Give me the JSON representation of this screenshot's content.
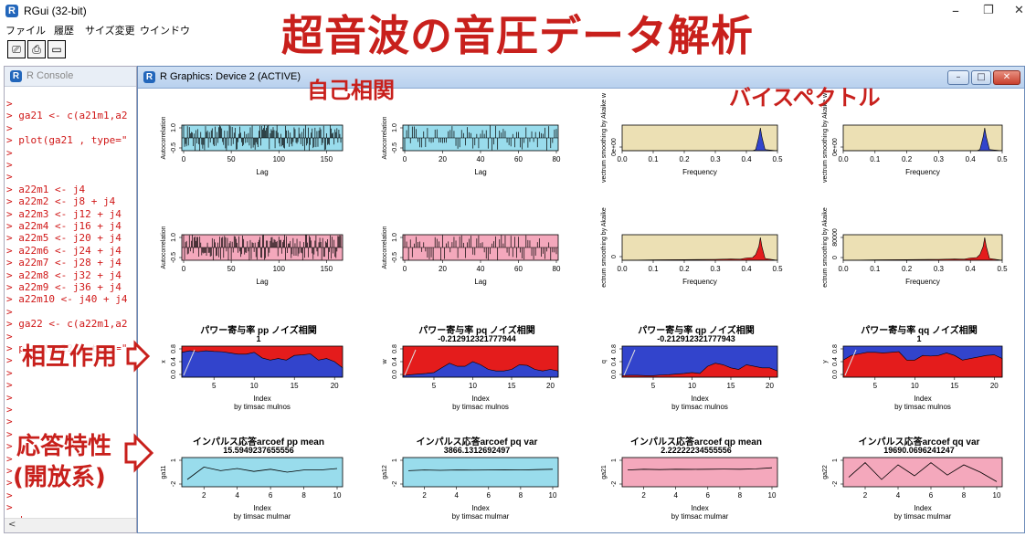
{
  "app": {
    "title": "RGui (32-bit)",
    "logo": "R",
    "min": "–",
    "restore": "❐",
    "close": "✕"
  },
  "menu": [
    "ファイル",
    "履歴",
    "サイズ変更",
    "ウインドウ"
  ],
  "toolbar": [
    "⎚",
    "⎙",
    "▭"
  ],
  "console": {
    "title": "R Console",
    "lines": [
      ">",
      "> ga21 <- c(a21m1,a2",
      ">",
      "> plot(ga21 , type=\"",
      ">",
      ">",
      ">",
      "> a22m1 <-  j4",
      "> a22m2 <-  j8 + j4",
      "> a22m3 <-  j12 + j4",
      "> a22m4 <- j16 + j4",
      "> a22m5 <- j20 + j4",
      "> a22m6 <- j24 + j4",
      "> a22m7 <- j28 + j4",
      "> a22m8 <- j32 + j4",
      "> a22m9 <- j36 + j4",
      "> a22m10 <- j40 + j4",
      ">",
      "> ga22 <- c(a22m1,a2",
      ">",
      "> plot(ga22 , type=\"",
      ">",
      ">",
      ">",
      ">",
      ">",
      ">",
      ">",
      ">",
      ">",
      ">",
      ">",
      ">",
      ">",
      "> |"
    ],
    "scroll_left": "<"
  },
  "graphics": {
    "title": "R Graphics: Device 2 (ACTIVE)",
    "btn_min": "–",
    "btn_max": "□",
    "btn_close": "✕"
  },
  "annotations": {
    "main_title": "超音波の音圧データ解析",
    "autocorr": "自己相関",
    "bispectrum": "バイスペクトル",
    "interaction": "相互作用",
    "response1": "応答特性",
    "response2": "(開放系)"
  },
  "colors": {
    "red_text": "#c8201c",
    "console_text": "#d01818",
    "cyan_fill": "#99dcec",
    "pink_fill": "#f4a8bc",
    "tan_fill": "#ece0b4",
    "blue_fill": "#3244cc",
    "red_fill": "#e41c1c"
  },
  "chart_data": [
    {
      "type": "bar",
      "id": "acf1",
      "ylabel": "Autocorrelation",
      "xlabel": "Lag",
      "xticks": [
        "0",
        "50",
        "100",
        "150"
      ],
      "yticks": [
        "-0.5",
        "1.0"
      ],
      "xlim": [
        0,
        165
      ],
      "bg": "cyan"
    },
    {
      "type": "bar",
      "id": "acf2",
      "ylabel": "Autocorrelation",
      "xlabel": "Lag",
      "xticks": [
        "0",
        "20",
        "40",
        "60",
        "80"
      ],
      "yticks": [
        "-0.5",
        "1.0"
      ],
      "xlim": [
        0,
        80
      ],
      "bg": "cyan"
    },
    {
      "type": "area",
      "id": "bisp1",
      "ylabel": "vectrum smoothing by  Akaike w",
      "xlabel": "Frequency",
      "xticks": [
        "0.0",
        "0.1",
        "0.2",
        "0.3",
        "0.4",
        "0.5"
      ],
      "yticks": [
        "0e+00"
      ],
      "xlim": [
        0,
        0.5
      ],
      "bg": "tan",
      "x": [
        0.0,
        0.42,
        0.43,
        0.44,
        0.445,
        0.45,
        0.46,
        0.5
      ],
      "y": [
        0.0,
        0.0,
        0.05,
        0.6,
        1.0,
        0.6,
        0.05,
        0.0
      ]
    },
    {
      "type": "area",
      "id": "bisp2",
      "ylabel": "vectrum smoothing by  Akaike w",
      "xlabel": "Frequency",
      "xticks": [
        "0.0",
        "0.1",
        "0.2",
        "0.3",
        "0.4",
        "0.5"
      ],
      "yticks": [
        "0e+00"
      ],
      "xlim": [
        0,
        0.5
      ],
      "bg": "tan",
      "x": [
        0.0,
        0.42,
        0.43,
        0.44,
        0.445,
        0.45,
        0.46,
        0.5
      ],
      "y": [
        0.0,
        0.0,
        0.05,
        0.6,
        1.0,
        0.6,
        0.05,
        0.0
      ]
    },
    {
      "type": "bar",
      "id": "acf3",
      "ylabel": "Autocorrelation",
      "xlabel": "Lag",
      "xticks": [
        "0",
        "50",
        "100",
        "150"
      ],
      "yticks": [
        "-0.5",
        "1.0"
      ],
      "xlim": [
        0,
        165
      ],
      "bg": "pink"
    },
    {
      "type": "bar",
      "id": "acf4",
      "ylabel": "Autocorrelation",
      "xlabel": "Lag",
      "xticks": [
        "0",
        "20",
        "40",
        "60",
        "80"
      ],
      "yticks": [
        "-0.5",
        "1.0"
      ],
      "xlim": [
        0,
        80
      ],
      "bg": "pink"
    },
    {
      "type": "area",
      "id": "bisp3",
      "ylabel": "ectrum smoothing by  Akaike",
      "xlabel": "Frequency",
      "xticks": [
        "0.0",
        "0.1",
        "0.2",
        "0.3",
        "0.4",
        "0.5"
      ],
      "yticks": [
        "0"
      ],
      "xlim": [
        0,
        0.5
      ],
      "bg": "tan",
      "x": [
        0.0,
        0.05,
        0.1,
        0.2,
        0.3,
        0.35,
        0.38,
        0.4,
        0.42,
        0.43,
        0.44,
        0.445,
        0.45,
        0.46,
        0.5
      ],
      "y": [
        0.0,
        0.01,
        0.02,
        0.03,
        0.04,
        0.06,
        0.05,
        0.1,
        0.12,
        0.25,
        0.6,
        1.0,
        0.6,
        0.08,
        0.0
      ]
    },
    {
      "type": "area",
      "id": "bisp4",
      "ylabel": "ectrum smoothing by  Akaike",
      "xlabel": "Frequency",
      "xticks": [
        "0.0",
        "0.1",
        "0.2",
        "0.3",
        "0.4",
        "0.5"
      ],
      "yticks": [
        "0",
        "80000"
      ],
      "xlim": [
        0,
        0.5
      ],
      "bg": "tan",
      "x": [
        0.0,
        0.05,
        0.1,
        0.2,
        0.3,
        0.35,
        0.38,
        0.4,
        0.42,
        0.43,
        0.44,
        0.445,
        0.45,
        0.46,
        0.5
      ],
      "y": [
        0.0,
        0.01,
        0.02,
        0.03,
        0.04,
        0.06,
        0.05,
        0.1,
        0.12,
        0.25,
        0.6,
        1.0,
        0.6,
        0.08,
        0.0
      ]
    },
    {
      "type": "area",
      "id": "pw1",
      "title": "パワー寄与率 pp    ノイズ相関",
      "subtitle": "1",
      "ylabel": "x",
      "xlabel": "Index",
      "sublabel": "by timsac mulnos",
      "xticks": [
        "5",
        "10",
        "15",
        "20"
      ],
      "yticks": [
        "0.0",
        "0.4",
        "0.8"
      ],
      "xlim": [
        1,
        21
      ],
      "ylim": [
        0,
        1
      ],
      "x": [
        1,
        2,
        3,
        4,
        5,
        6,
        7,
        8,
        9,
        10,
        11,
        12,
        13,
        14,
        15,
        16,
        17,
        18,
        19,
        20,
        21
      ],
      "y": [
        0.8,
        0.85,
        0.82,
        0.85,
        0.83,
        0.82,
        0.78,
        0.74,
        0.74,
        0.8,
        0.62,
        0.55,
        0.6,
        0.55,
        0.7,
        0.72,
        0.75,
        0.55,
        0.6,
        0.5,
        0.3
      ]
    },
    {
      "type": "area",
      "id": "pw2",
      "title": "パワー寄与率 pq    ノイズ相関",
      "subtitle": "-0.212912321777944",
      "ylabel": "w",
      "xlabel": "Index",
      "sublabel": "by timsac mulnos",
      "xticks": [
        "5",
        "10",
        "15",
        "20"
      ],
      "yticks": [
        "0.0",
        "0.4",
        "0.8"
      ],
      "xlim": [
        1,
        21
      ],
      "ylim": [
        0,
        1
      ],
      "x": [
        1,
        2,
        3,
        4,
        5,
        6,
        7,
        8,
        9,
        10,
        11,
        12,
        13,
        14,
        15,
        16,
        17,
        18,
        19,
        20,
        21
      ],
      "y": [
        0.05,
        0.08,
        0.1,
        0.12,
        0.15,
        0.3,
        0.45,
        0.35,
        0.35,
        0.5,
        0.4,
        0.25,
        0.2,
        0.2,
        0.25,
        0.4,
        0.38,
        0.25,
        0.2,
        0.25,
        0.2
      ]
    },
    {
      "type": "area",
      "id": "pw3",
      "title": "パワー寄与率 qp    ノイズ相関",
      "subtitle": "-0.212912321777943",
      "ylabel": "q",
      "xlabel": "Index",
      "sublabel": "by timsac mulnos",
      "xticks": [
        "5",
        "10",
        "15",
        "20"
      ],
      "yticks": [
        "0.0",
        "0.4",
        "0.8"
      ],
      "xlim": [
        1,
        21
      ],
      "ylim": [
        0,
        1
      ],
      "x": [
        1,
        2,
        3,
        4,
        5,
        6,
        7,
        8,
        9,
        10,
        11,
        12,
        13,
        14,
        15,
        16,
        17,
        18,
        19,
        20,
        21
      ],
      "y": [
        0.05,
        0.06,
        0.06,
        0.05,
        0.05,
        0.07,
        0.08,
        0.1,
        0.12,
        0.15,
        0.12,
        0.35,
        0.45,
        0.4,
        0.3,
        0.25,
        0.4,
        0.35,
        0.3,
        0.3,
        0.2
      ]
    },
    {
      "type": "area",
      "id": "pw4",
      "title": "パワー寄与率 qq    ノイズ相関",
      "subtitle": "1",
      "ylabel": "y",
      "xlabel": "Index",
      "sublabel": "by timsac mulnos",
      "xticks": [
        "5",
        "10",
        "15",
        "20"
      ],
      "yticks": [
        "0.0",
        "0.4",
        "0.8"
      ],
      "xlim": [
        1,
        21
      ],
      "ylim": [
        0,
        1
      ],
      "x": [
        1,
        2,
        3,
        4,
        5,
        6,
        7,
        8,
        9,
        10,
        11,
        12,
        13,
        14,
        15,
        16,
        17,
        18,
        19,
        20,
        21
      ],
      "y": [
        0.55,
        0.7,
        0.75,
        0.8,
        0.8,
        0.78,
        0.8,
        0.82,
        0.55,
        0.55,
        0.7,
        0.68,
        0.7,
        0.78,
        0.7,
        0.55,
        0.6,
        0.65,
        0.7,
        0.72,
        0.6
      ]
    },
    {
      "type": "line",
      "id": "ir1",
      "title": "インパルス応答arcoef pp    mean",
      "subtitle": "15.5949237655556",
      "ylabel": "ga11",
      "xlabel": "Index",
      "sublabel": "by timsac mulmar",
      "xticks": [
        "2",
        "4",
        "6",
        "8",
        "10"
      ],
      "yticks": [
        "-2",
        "1"
      ],
      "xlim": [
        1,
        10
      ],
      "ylim": [
        -2.5,
        1.5
      ],
      "bg": "cyan",
      "x": [
        1,
        2,
        3,
        4,
        5,
        6,
        7,
        8,
        9,
        10
      ],
      "y": [
        -1.5,
        0.2,
        -0.3,
        0.0,
        -0.4,
        -0.1,
        -0.5,
        -0.2,
        -0.2,
        0.0
      ]
    },
    {
      "type": "line",
      "id": "ir2",
      "title": "インパルス応答arcoef pq    var",
      "subtitle": "3866.1312692497",
      "ylabel": "ga12",
      "xlabel": "Index",
      "sublabel": "by timsac mulmar",
      "xticks": [
        "2",
        "4",
        "6",
        "8",
        "10"
      ],
      "yticks": [
        "-2",
        "1"
      ],
      "xlim": [
        1,
        10
      ],
      "ylim": [
        -2.5,
        1.5
      ],
      "bg": "cyan",
      "x": [
        1,
        2,
        3,
        4,
        5,
        6,
        7,
        8,
        9,
        10
      ],
      "y": [
        -0.3,
        -0.2,
        -0.25,
        -0.2,
        -0.22,
        -0.2,
        -0.18,
        -0.2,
        -0.15,
        -0.1
      ]
    },
    {
      "type": "line",
      "id": "ir3",
      "title": "インパルス応答arcoef qp    mean",
      "subtitle": "2.22222234555556",
      "ylabel": "ga21",
      "xlabel": "Index",
      "sublabel": "by timsac mulmar",
      "xticks": [
        "2",
        "4",
        "6",
        "8",
        "10"
      ],
      "yticks": [
        "-2",
        "1"
      ],
      "xlim": [
        1,
        10
      ],
      "ylim": [
        -2.5,
        1.5
      ],
      "bg": "pink",
      "x": [
        1,
        2,
        3,
        4,
        5,
        6,
        7,
        8,
        9,
        10
      ],
      "y": [
        -0.2,
        -0.1,
        -0.15,
        -0.1,
        -0.12,
        -0.1,
        -0.08,
        -0.1,
        -0.05,
        0.1
      ]
    },
    {
      "type": "line",
      "id": "ir4",
      "title": "インパルス応答arcoef qq    var",
      "subtitle": "19690.0696241247",
      "ylabel": "ga22",
      "xlabel": "Index",
      "sublabel": "by timsac mulmar",
      "xticks": [
        "2",
        "4",
        "6",
        "8",
        "10"
      ],
      "yticks": [
        "-2",
        "1"
      ],
      "xlim": [
        1,
        10
      ],
      "ylim": [
        -2.5,
        1.5
      ],
      "bg": "pink",
      "x": [
        1,
        2,
        3,
        4,
        5,
        6,
        7,
        8,
        9,
        10
      ],
      "y": [
        -1.2,
        0.8,
        -1.5,
        0.5,
        -1.0,
        0.8,
        -0.9,
        0.5,
        -0.5,
        -1.8
      ]
    }
  ]
}
